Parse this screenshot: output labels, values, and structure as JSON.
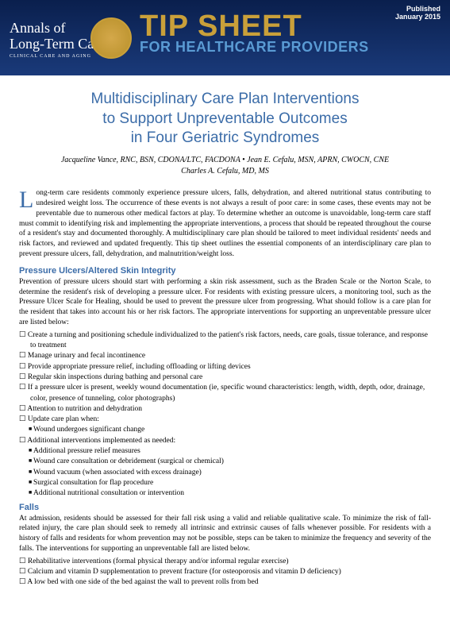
{
  "header": {
    "published_label": "Published",
    "published_date": "January 2015",
    "annals_line1": "Annals of",
    "annals_line2": "Long-Term Care",
    "annals_sub": "CLINICAL CARE AND AGING",
    "tip_big": "TIP SHEET",
    "tip_sub": "FOR HEALTHCARE PROVIDERS"
  },
  "title": {
    "line1": "Multidisciplinary Care Plan Interventions",
    "line2": "to Support Unpreventable Outcomes",
    "line3": "in Four Geriatric Syndromes"
  },
  "authors": {
    "line1": "Jacqueline Vance, RNC, BSN, CDONA/LTC, FACDONA • Jean E. Cefalu, MSN, APRN, CWOCN, CNE",
    "line2": "Charles A. Cefalu, MD, MS"
  },
  "intro": "Long-term care residents commonly experience pressure ulcers, falls, dehydration, and altered nutritional status contributing to undesired weight loss. The occurrence of these events is not always a result of poor care: in some cases, these events may not be preventable due to numerous other medical factors at play. To determine whether an outcome is unavoidable, long-term care staff must commit to identifying risk and implementing the appropriate interventions, a process that should be repeated throughout the course of a resident's stay and documented thoroughly. A multidisciplinary care plan should be tailored to meet individual residents' needs and risk factors, and reviewed and updated frequently. This tip sheet outlines the essential components of an interdisciplinary care plan to prevent pressure ulcers, fall, dehydration, and malnutrition/weight loss.",
  "sections": {
    "pressure": {
      "head": "Pressure Ulcers/Altered Skin Integrity",
      "body": "Prevention of pressure ulcers should start with performing a skin risk assessment, such as the Braden Scale or the Norton Scale, to determine the resident's risk of developing a pressure ulcer. For residents with existing pressure ulcers, a monitoring tool, such as the Pressure Ulcer Scale for Healing, should be used to prevent the pressure ulcer from progressing. What should follow is a care plan for the resident that takes into account his or her risk factors. The appropriate interventions for supporting an unpreventable pressure ulcer are listed below:",
      "items": [
        "Create a turning and positioning schedule individualized to the patient's risk factors, needs, care goals, tissue tolerance, and response to treatment",
        "Manage urinary and fecal incontinence",
        "Provide appropriate pressure relief, including offloading or lifting devices",
        "Regular skin inspections during bathing and personal care",
        "If a pressure ulcer is present, weekly wound documentation (ie, specific wound characteristics: length, width, depth, odor, drainage, color, presence of tunneling, color photographs)",
        "Attention to nutrition and dehydration",
        "Update care plan when:"
      ],
      "sub1": [
        "Wound undergoes significant change"
      ],
      "item_last": "Additional interventions implemented as needed:",
      "sub2": [
        "Additional pressure relief measures",
        "Wound care consultation or debridement (surgical or chemical)",
        "Wound vacuum (when associated with excess drainage)",
        "Surgical consultation for flap procedure",
        "Additional nutritional consultation or intervention"
      ]
    },
    "falls": {
      "head": "Falls",
      "body": "At admission, residents should be assessed for their fall risk using a valid and reliable qualitative scale. To minimize the risk of fall-related injury, the care plan should seek to remedy all intrinsic and extrinsic causes of falls whenever possible. For residents with a history of falls and residents for whom prevention may not be possible, steps can be taken to minimize the frequency and severity of the falls. The interventions for supporting an unpreventable fall are listed below.",
      "items": [
        "Rehabilitative interventions (formal physical therapy and/or informal regular exercise)",
        "Calcium and vitamin D supplementation to prevent fracture (for osteoporosis and vitamin D deficiency)",
        "A low bed with one side of the bed against the wall to prevent rolls from bed"
      ]
    }
  },
  "colors": {
    "header_top": "#0a1f4d",
    "header_bottom": "#1a3a7a",
    "gold": "#c9a03a",
    "blue_accent": "#5a9bd4",
    "title_blue": "#3b6ca8"
  }
}
